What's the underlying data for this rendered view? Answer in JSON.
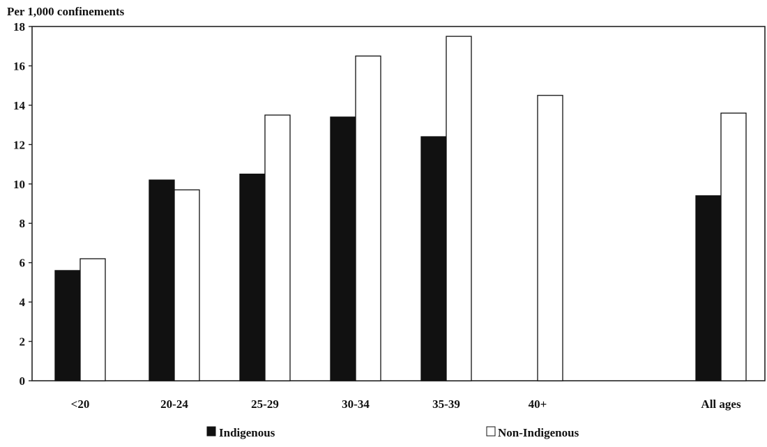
{
  "chart_data": {
    "type": "bar",
    "title": "",
    "ylabel": "Per 1,000 confinements",
    "xlabel": "",
    "ylim": [
      0,
      18
    ],
    "yticks": [
      0,
      2,
      4,
      6,
      8,
      10,
      12,
      14,
      16,
      18
    ],
    "categories": [
      "<20",
      "20-24",
      "25-29",
      "30-34",
      "35-39",
      "40+",
      "All ages"
    ],
    "series": [
      {
        "name": "Indigenous",
        "color": "#111111",
        "values": [
          5.6,
          10.2,
          10.5,
          13.4,
          12.4,
          null,
          9.4
        ]
      },
      {
        "name": "Non-Indigenous",
        "color": "#ffffff",
        "values": [
          6.2,
          9.7,
          13.5,
          16.5,
          17.5,
          14.5,
          13.6
        ]
      }
    ],
    "legend": {
      "position": "bottom",
      "items": [
        "Indigenous",
        "Non-Indigenous"
      ]
    },
    "grid": false
  }
}
